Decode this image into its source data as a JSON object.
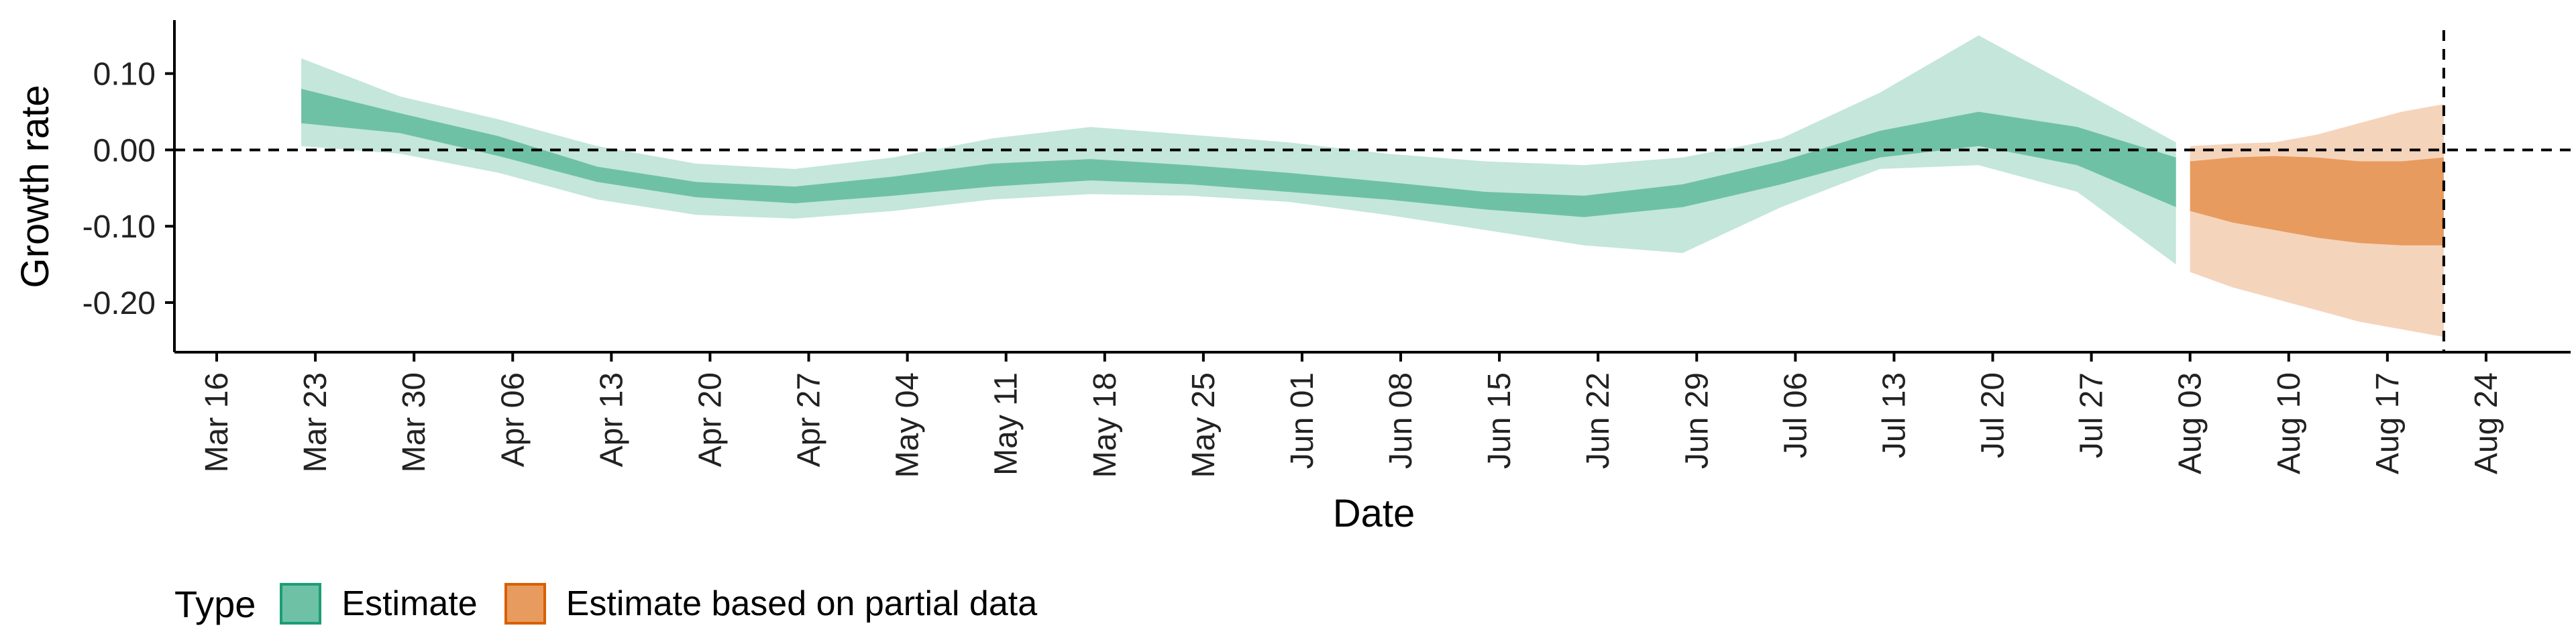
{
  "chart_data": {
    "type": "area",
    "xlabel": "Date",
    "ylabel": "Growth rate",
    "ylim": [
      -0.265,
      0.17
    ],
    "yticks": [
      0.1,
      0.0,
      -0.1,
      -0.2
    ],
    "ytick_labels": [
      "0.10",
      "0.00",
      "-0.10",
      "-0.20"
    ],
    "xlim": [
      "2020-03-13",
      "2020-08-30"
    ],
    "xticks": [
      "2020-03-16",
      "2020-03-23",
      "2020-03-30",
      "2020-04-06",
      "2020-04-13",
      "2020-04-20",
      "2020-04-27",
      "2020-05-04",
      "2020-05-11",
      "2020-05-18",
      "2020-05-25",
      "2020-06-01",
      "2020-06-08",
      "2020-06-15",
      "2020-06-22",
      "2020-06-29",
      "2020-07-06",
      "2020-07-13",
      "2020-07-20",
      "2020-07-27",
      "2020-08-03",
      "2020-08-10",
      "2020-08-17",
      "2020-08-24"
    ],
    "xtick_labels": [
      "Mar 16",
      "Mar 23",
      "Mar 30",
      "Apr 06",
      "Apr 13",
      "Apr 20",
      "Apr 27",
      "May 04",
      "May 11",
      "May 18",
      "May 25",
      "Jun 01",
      "Jun 08",
      "Jun 15",
      "Jun 22",
      "Jun 29",
      "Jul 06",
      "Jul 13",
      "Jul 20",
      "Jul 27",
      "Aug 03",
      "Aug 10",
      "Aug 17",
      "Aug 24"
    ],
    "hline": 0,
    "vline": "2020-08-21",
    "colors": {
      "estimate_inner": "#6fc1a5",
      "estimate_outer": "#c4e6db",
      "partial_inner": "#e89b5e",
      "partial_outer": "#f5d4bc",
      "estimate_border": "#1b9e77",
      "partial_border": "#d95f02"
    },
    "series": [
      {
        "name": "Estimate",
        "x": [
          "2020-03-22",
          "2020-03-29",
          "2020-04-05",
          "2020-04-12",
          "2020-04-19",
          "2020-04-26",
          "2020-05-03",
          "2020-05-10",
          "2020-05-17",
          "2020-05-24",
          "2020-05-31",
          "2020-06-07",
          "2020-06-14",
          "2020-06-21",
          "2020-06-28",
          "2020-07-05",
          "2020-07-12",
          "2020-07-19",
          "2020-07-26",
          "2020-08-02"
        ],
        "inner_upper": [
          0.08,
          0.048,
          0.018,
          -0.022,
          -0.042,
          -0.048,
          -0.035,
          -0.018,
          -0.012,
          -0.02,
          -0.03,
          -0.042,
          -0.055,
          -0.06,
          -0.045,
          -0.015,
          0.025,
          0.05,
          0.03,
          -0.01
        ],
        "inner_lower": [
          0.035,
          0.022,
          -0.008,
          -0.042,
          -0.062,
          -0.07,
          -0.06,
          -0.048,
          -0.04,
          -0.045,
          -0.055,
          -0.065,
          -0.078,
          -0.088,
          -0.075,
          -0.045,
          -0.01,
          0.005,
          -0.02,
          -0.075
        ],
        "outer_upper": [
          0.12,
          0.07,
          0.04,
          0.005,
          -0.018,
          -0.025,
          -0.01,
          0.015,
          0.03,
          0.02,
          0.01,
          -0.005,
          -0.015,
          -0.02,
          -0.01,
          0.015,
          0.075,
          0.15,
          0.08,
          0.01
        ],
        "outer_lower": [
          0.005,
          -0.005,
          -0.03,
          -0.065,
          -0.085,
          -0.09,
          -0.08,
          -0.065,
          -0.058,
          -0.06,
          -0.068,
          -0.085,
          -0.105,
          -0.125,
          -0.135,
          -0.075,
          -0.025,
          -0.02,
          -0.055,
          -0.15
        ]
      },
      {
        "name": "Estimate based on partial data",
        "x": [
          "2020-08-03",
          "2020-08-06",
          "2020-08-09",
          "2020-08-12",
          "2020-08-15",
          "2020-08-18",
          "2020-08-21"
        ],
        "inner_upper": [
          -0.015,
          -0.01,
          -0.008,
          -0.01,
          -0.015,
          -0.015,
          -0.01
        ],
        "inner_lower": [
          -0.08,
          -0.095,
          -0.105,
          -0.115,
          -0.122,
          -0.125,
          -0.125
        ],
        "outer_upper": [
          0.005,
          0.008,
          0.01,
          0.02,
          0.035,
          0.05,
          0.06
        ],
        "outer_lower": [
          -0.16,
          -0.18,
          -0.195,
          -0.21,
          -0.225,
          -0.235,
          -0.245
        ]
      }
    ]
  },
  "legend": {
    "title": "Type",
    "items": [
      {
        "label": "Estimate",
        "fill": "#6fc1a5",
        "border": "#1b9e77"
      },
      {
        "label": "Estimate based on partial data",
        "fill": "#e89b5e",
        "border": "#d95f02"
      }
    ]
  }
}
